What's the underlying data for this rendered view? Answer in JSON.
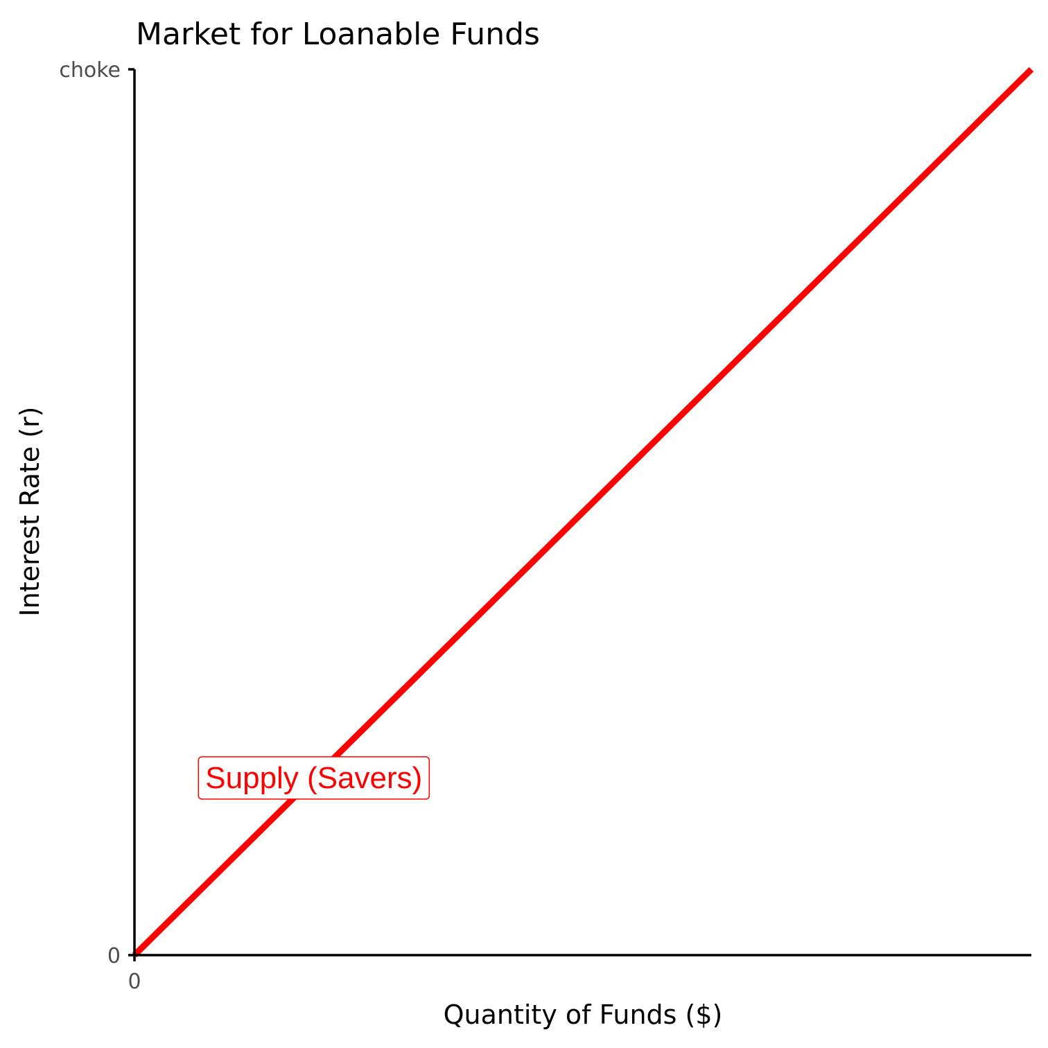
{
  "chart_data": {
    "type": "line",
    "title": "Market for Loanable Funds",
    "xlabel": "Quantity of Funds ($)",
    "ylabel": "Interest Rate (r)",
    "xlim": [
      0,
      1
    ],
    "ylim": [
      0,
      1
    ],
    "x_ticks": [
      {
        "value": 0,
        "label": "0"
      }
    ],
    "y_ticks": [
      {
        "value": 0,
        "label": "0"
      },
      {
        "value": 1,
        "label": "choke"
      }
    ],
    "grid": false,
    "series": [
      {
        "name": "Supply (Savers)",
        "color": "#ff0000",
        "x": [
          0,
          1
        ],
        "y": [
          0,
          1
        ]
      }
    ],
    "annotations": [
      {
        "text": "Supply (Savers)",
        "x": 0.2,
        "y": 0.2,
        "color": "#ff0000",
        "boxed": true
      }
    ]
  }
}
